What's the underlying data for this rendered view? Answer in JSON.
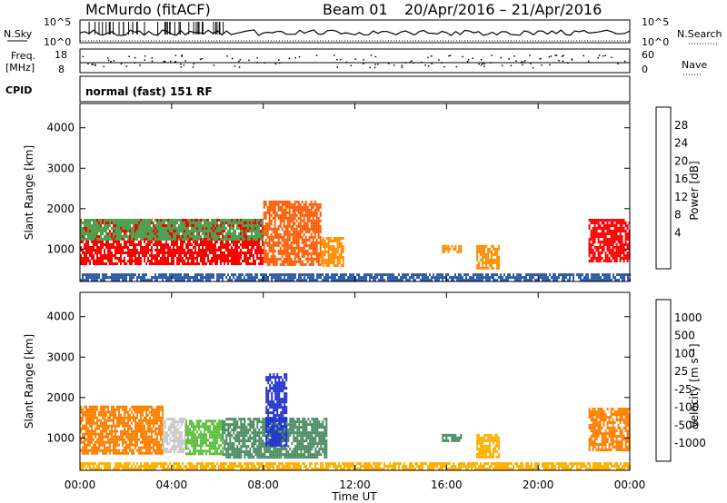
{
  "header": {
    "station": "McMurdo (fitACF)",
    "beam": "Beam 01",
    "dates": "20/Apr/2016 – 21/Apr/2016"
  },
  "panels": {
    "nsky_label": "N.Sky",
    "nsearch_label": "N.Search",
    "top_ticks": [
      "10^5",
      "10^0"
    ],
    "freq_label_1": "Freq.",
    "freq_label_2": "[MHz]",
    "freq_ticks": [
      "18",
      "8"
    ],
    "nave_label": "Nave",
    "nave_ticks": [
      "60",
      "0"
    ],
    "cpid_label": "CPID",
    "cpid_text": "normal (fast) 151 RF"
  },
  "colorbars": {
    "power": {
      "label": "Power [dB]",
      "ticks": [
        "28",
        "24",
        "20",
        "16",
        "12",
        "8",
        "4"
      ],
      "colors": [
        "#ff0000",
        "#ff5a00",
        "#ff8c00",
        "#ffc800",
        "#8fd13f",
        "#4fa04f",
        "#3a7f6f",
        "#2f5aa8",
        "#0000ff"
      ]
    },
    "velocity": {
      "label": "Velocity [m s⁻¹]",
      "ticks": [
        "1000",
        "500",
        "100",
        "25",
        "-25",
        "-100",
        "-500",
        "-1000"
      ],
      "colors": [
        "#2030d0",
        "#3060b0",
        "#4a8a60",
        "#5fc040",
        "#c8c8c8",
        "#ffb000",
        "#ff8000",
        "#ff5000",
        "#ff0000"
      ]
    }
  },
  "chart_data": [
    {
      "type": "heatmap",
      "name": "power",
      "ylabel": "Slant Range [km]",
      "xlabel": "",
      "xlim": [
        0,
        24
      ],
      "ylim": [
        200,
        4600
      ],
      "y_ticks": [
        "4000",
        "3000",
        "2000",
        "1000"
      ],
      "x_ticks": [
        "00:00",
        "04:00",
        "08:00",
        "12:00",
        "16:00",
        "20:00",
        "00:00"
      ],
      "regions": [
        {
          "x": [
            0,
            8
          ],
          "y": [
            650,
            1750
          ],
          "color": "#ff0000"
        },
        {
          "x": [
            0,
            8
          ],
          "y": [
            1250,
            1750
          ],
          "color": "#4fa04f"
        },
        {
          "x": [
            8,
            10.5
          ],
          "y": [
            600,
            2200
          ],
          "color": "#ff5a00"
        },
        {
          "x": [
            10.5,
            11.5
          ],
          "y": [
            600,
            1300
          ],
          "color": "#ff8c00"
        },
        {
          "x": [
            15.8,
            16.6
          ],
          "y": [
            950,
            1100
          ],
          "color": "#ff8c00"
        },
        {
          "x": [
            17.3,
            18.3
          ],
          "y": [
            500,
            1100
          ],
          "color": "#ff8c00"
        },
        {
          "x": [
            22.2,
            24
          ],
          "y": [
            700,
            1750
          ],
          "color": "#ff0000"
        },
        {
          "x": [
            0,
            24
          ],
          "y": [
            200,
            400
          ],
          "color": "#2f5aa8"
        }
      ]
    },
    {
      "type": "heatmap",
      "name": "velocity",
      "ylabel": "Slant Range [km]",
      "xlabel": "Time UT",
      "xlim": [
        0,
        24
      ],
      "ylim": [
        200,
        4600
      ],
      "y_ticks": [
        "4000",
        "3000",
        "2000",
        "1000"
      ],
      "x_ticks": [
        "00:00",
        "04:00",
        "08:00",
        "12:00",
        "16:00",
        "20:00",
        "00:00"
      ],
      "regions": [
        {
          "x": [
            0,
            3.6
          ],
          "y": [
            650,
            1800
          ],
          "color": "#ff8000"
        },
        {
          "x": [
            3.6,
            4.6
          ],
          "y": [
            650,
            1500
          ],
          "color": "#c8c8c8"
        },
        {
          "x": [
            4.6,
            6.2
          ],
          "y": [
            600,
            1450
          ],
          "color": "#5fc040"
        },
        {
          "x": [
            6.2,
            10.8
          ],
          "y": [
            550,
            1500
          ],
          "color": "#4a8a60"
        },
        {
          "x": [
            8.1,
            9
          ],
          "y": [
            800,
            2600
          ],
          "color": "#2030d0"
        },
        {
          "x": [
            15.8,
            16.6
          ],
          "y": [
            950,
            1100
          ],
          "color": "#4a8a60"
        },
        {
          "x": [
            17.3,
            18.3
          ],
          "y": [
            500,
            1100
          ],
          "color": "#ffb000"
        },
        {
          "x": [
            22.2,
            24
          ],
          "y": [
            700,
            1750
          ],
          "color": "#ff8000"
        },
        {
          "x": [
            0,
            24
          ],
          "y": [
            200,
            400
          ],
          "color": "#ffb000"
        }
      ]
    }
  ]
}
